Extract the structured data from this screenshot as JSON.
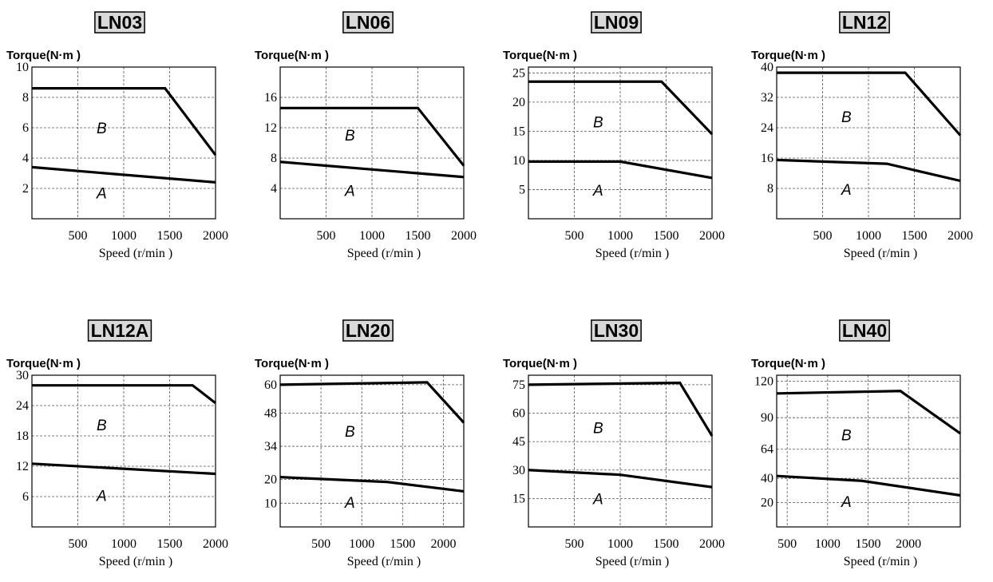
{
  "chart_data": [
    {
      "type": "line",
      "title": "LN03",
      "y_label": "Torque(N·m )",
      "x_label": "Speed (r/min )",
      "xlim": [
        0,
        2000
      ],
      "ylim": [
        0,
        10
      ],
      "xticks": [
        500,
        1000,
        1500,
        2000
      ],
      "yticks": [
        2,
        4,
        6,
        8,
        10
      ],
      "grid": true,
      "series": [
        {
          "name": "B",
          "color": "#000000",
          "x": [
            0,
            1450,
            2000
          ],
          "values": [
            8.6,
            8.6,
            4.2
          ]
        },
        {
          "name": "A",
          "color": "#000000",
          "x": [
            0,
            2000
          ],
          "values": [
            3.4,
            2.4
          ]
        }
      ]
    },
    {
      "type": "line",
      "title": "LN06",
      "y_label": "Torque(N·m )",
      "x_label": "Speed (r/min )",
      "xlim": [
        0,
        2000
      ],
      "ylim": [
        0,
        20
      ],
      "xticks": [
        500,
        1000,
        1500,
        2000
      ],
      "yticks": [
        4,
        8,
        12,
        16
      ],
      "grid": true,
      "series": [
        {
          "name": "B",
          "color": "#000000",
          "x": [
            0,
            1500,
            2000
          ],
          "values": [
            14.6,
            14.6,
            7
          ]
        },
        {
          "name": "A",
          "color": "#000000",
          "x": [
            0,
            2000
          ],
          "values": [
            7.5,
            5.5
          ]
        }
      ]
    },
    {
      "type": "line",
      "title": "LN09",
      "y_label": "Torque(N·m )",
      "x_label": "Speed (r/min )",
      "xlim": [
        0,
        2000
      ],
      "ylim": [
        0,
        26
      ],
      "xticks": [
        500,
        1000,
        1500,
        2000
      ],
      "yticks": [
        5,
        10,
        15,
        20,
        25
      ],
      "grid": true,
      "series": [
        {
          "name": "B",
          "color": "#000000",
          "x": [
            0,
            1450,
            2000
          ],
          "values": [
            23.5,
            23.5,
            14.5
          ]
        },
        {
          "name": "A",
          "color": "#000000",
          "x": [
            0,
            1000,
            2000
          ],
          "values": [
            9.8,
            9.8,
            7
          ]
        }
      ]
    },
    {
      "type": "line",
      "title": "LN12",
      "y_label": "Torque(N·m )",
      "x_label": "Speed (r/min )",
      "xlim": [
        0,
        2000
      ],
      "ylim": [
        0,
        40
      ],
      "xticks": [
        500,
        1000,
        1500,
        2000
      ],
      "yticks": [
        8,
        16,
        24,
        32,
        40
      ],
      "grid": true,
      "series": [
        {
          "name": "B",
          "color": "#000000",
          "x": [
            0,
            1400,
            2000
          ],
          "values": [
            38.5,
            38.5,
            22
          ]
        },
        {
          "name": "A",
          "color": "#000000",
          "x": [
            0,
            1200,
            2000
          ],
          "values": [
            15.5,
            14.5,
            10
          ]
        }
      ]
    },
    {
      "type": "line",
      "title": "LN12A",
      "y_label": "Torque(N·m )",
      "x_label": "Speed (r/min )",
      "xlim": [
        0,
        2000
      ],
      "ylim": [
        0,
        30
      ],
      "xticks": [
        500,
        1000,
        1500,
        2000
      ],
      "yticks": [
        6,
        12,
        18,
        24,
        30
      ],
      "grid": true,
      "series": [
        {
          "name": "B",
          "color": "#000000",
          "x": [
            0,
            1750,
            2000
          ],
          "values": [
            28,
            28,
            24.5
          ]
        },
        {
          "name": "A",
          "color": "#000000",
          "x": [
            0,
            2000
          ],
          "values": [
            12.5,
            10.5
          ]
        }
      ]
    },
    {
      "type": "line",
      "title": "LN20",
      "y_label": "Torque(N·m )",
      "x_label": "Speed (r/min )",
      "xlim": [
        0,
        2250
      ],
      "ylim": [
        0,
        64
      ],
      "xticks": [
        500,
        1000,
        1500,
        2000
      ],
      "yticks": [
        10,
        20,
        34,
        48,
        60
      ],
      "grid": true,
      "series": [
        {
          "name": "B",
          "color": "#000000",
          "x": [
            0,
            1800,
            2250
          ],
          "values": [
            60,
            61,
            44
          ]
        },
        {
          "name": "A",
          "color": "#000000",
          "x": [
            0,
            1300,
            2250
          ],
          "values": [
            21,
            19,
            15
          ]
        }
      ]
    },
    {
      "type": "line",
      "title": "LN30",
      "y_label": "Torque(N·m )",
      "x_label": "Speed (r/min )",
      "xlim": [
        0,
        2000
      ],
      "ylim": [
        0,
        80
      ],
      "xticks": [
        500,
        1000,
        1500,
        2000
      ],
      "yticks": [
        15,
        30,
        45,
        60,
        75
      ],
      "grid": true,
      "series": [
        {
          "name": "B",
          "color": "#000000",
          "x": [
            0,
            1650,
            2000
          ],
          "values": [
            75,
            76,
            48
          ]
        },
        {
          "name": "A",
          "color": "#000000",
          "x": [
            0,
            1000,
            2000
          ],
          "values": [
            30,
            27.5,
            21
          ]
        }
      ]
    },
    {
      "type": "line",
      "title": "LN40",
      "y_label": "Torque(N·m )",
      "x_label": "Speed (r/min )",
      "xlim": [
        370,
        2640
      ],
      "ylim": [
        0,
        125
      ],
      "xticks": [
        500,
        1000,
        1500,
        2000
      ],
      "yticks": [
        20,
        40,
        64,
        90,
        120
      ],
      "grid": true,
      "series": [
        {
          "name": "B",
          "color": "#000000",
          "x": [
            370,
            1900,
            2640
          ],
          "values": [
            110,
            112,
            77
          ]
        },
        {
          "name": "A",
          "color": "#000000",
          "x": [
            370,
            1420,
            2640
          ],
          "values": [
            42,
            38,
            26
          ]
        }
      ]
    }
  ]
}
